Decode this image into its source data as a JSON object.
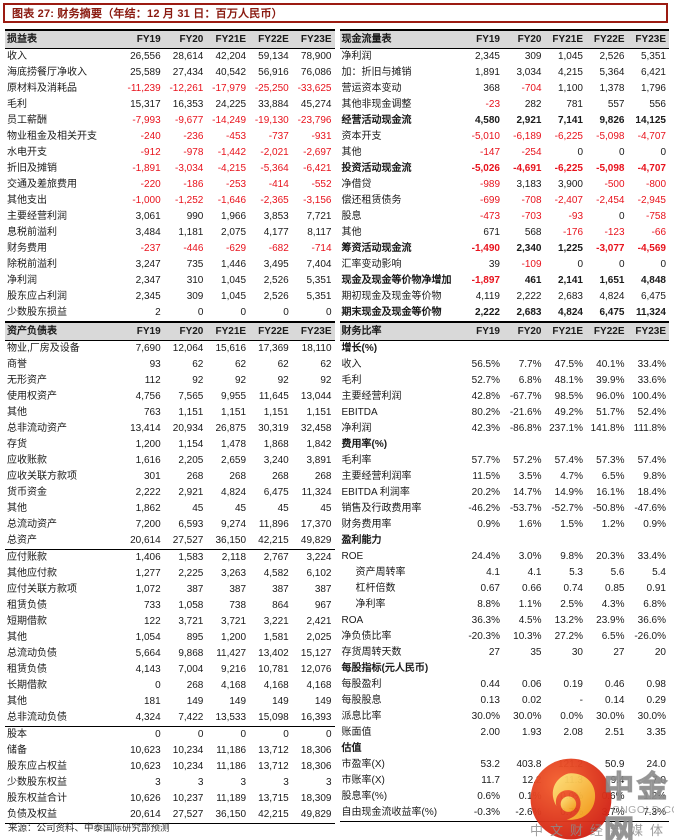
{
  "title": "图表 27: 财务摘要（年结：12 月 31 日：百万人民币）",
  "source": "来源：公司资料、中泰国际研究部预测",
  "columns": [
    "FY19",
    "FY20",
    "FY21E",
    "FY22E",
    "FY23E"
  ],
  "colors": {
    "accent_red_border": "#9b1b12",
    "title_text": "#8a1a10",
    "negative_value": "#e8131d",
    "header_bg": "#d9d9d9",
    "text": "#1a1a1a",
    "watermark_red": "#d6281e",
    "watermark_gold": "#f5a623",
    "watermark_gray": "#9a9a9a"
  },
  "tables": {
    "income": {
      "header": "损益表",
      "neg_red": true,
      "rows": [
        {
          "label": "收入",
          "values": [
            "26,556",
            "28,614",
            "42,204",
            "59,134",
            "78,900"
          ]
        },
        {
          "label": "海底捞餐厅净收入",
          "values": [
            "25,589",
            "27,434",
            "40,542",
            "56,916",
            "76,086"
          ]
        },
        {
          "label": "原材料及消耗品",
          "values": [
            "-11,239",
            "-12,261",
            "-17,979",
            "-25,250",
            "-33,625"
          ]
        },
        {
          "label": "毛利",
          "values": [
            "15,317",
            "16,353",
            "24,225",
            "33,884",
            "45,274"
          ]
        },
        {
          "label": "员工薪酬",
          "values": [
            "-7,993",
            "-9,677",
            "-14,249",
            "-19,130",
            "-23,796"
          ]
        },
        {
          "label": "物业租金及相关开支",
          "values": [
            "-240",
            "-236",
            "-453",
            "-737",
            "-931"
          ]
        },
        {
          "label": "水电开支",
          "values": [
            "-912",
            "-978",
            "-1,442",
            "-2,021",
            "-2,697"
          ]
        },
        {
          "label": "折旧及摊销",
          "values": [
            "-1,891",
            "-3,034",
            "-4,215",
            "-5,364",
            "-6,421"
          ]
        },
        {
          "label": "交通及差旅费用",
          "values": [
            "-220",
            "-186",
            "-253",
            "-414",
            "-552"
          ]
        },
        {
          "label": "其他支出",
          "values": [
            "-1,000",
            "-1,252",
            "-1,646",
            "-2,365",
            "-3,156"
          ]
        },
        {
          "label": "主要经营利润",
          "values": [
            "3,061",
            "990",
            "1,966",
            "3,853",
            "7,721"
          ]
        },
        {
          "label": "息税前溢利",
          "values": [
            "3,484",
            "1,181",
            "2,075",
            "4,177",
            "8,117"
          ]
        },
        {
          "label": "财务费用",
          "values": [
            "-237",
            "-446",
            "-629",
            "-682",
            "-714"
          ]
        },
        {
          "label": "除税前溢利",
          "values": [
            "3,247",
            "735",
            "1,446",
            "3,495",
            "7,404"
          ]
        },
        {
          "label": "净利润",
          "values": [
            "2,347",
            "310",
            "1,045",
            "2,526",
            "5,351"
          ]
        },
        {
          "label": "股东应占利润",
          "values": [
            "2,345",
            "309",
            "1,045",
            "2,526",
            "5,351"
          ]
        },
        {
          "label": "少数股东损益",
          "values": [
            "2",
            "0",
            "0",
            "0",
            "0"
          ]
        }
      ]
    },
    "cashflow": {
      "header": "现金流量表",
      "neg_red": true,
      "rows": [
        {
          "label": "净利润",
          "values": [
            "2,345",
            "309",
            "1,045",
            "2,526",
            "5,351"
          ]
        },
        {
          "label": "加：折旧与摊销",
          "values": [
            "1,891",
            "3,034",
            "4,215",
            "5,364",
            "6,421"
          ]
        },
        {
          "label": "营运资本变动",
          "values": [
            "368",
            "-704",
            "1,100",
            "1,378",
            "1,796"
          ]
        },
        {
          "label": "其他非现金调整",
          "values": [
            "-23",
            "282",
            "781",
            "557",
            "556"
          ]
        },
        {
          "label": "经营活动现金流",
          "bold": true,
          "values": [
            "4,580",
            "2,921",
            "7,141",
            "9,826",
            "14,125"
          ]
        },
        {
          "label": "资本开支",
          "values": [
            "-5,010",
            "-6,189",
            "-6,225",
            "-5,098",
            "-4,707"
          ]
        },
        {
          "label": "其他",
          "values": [
            "-147",
            "-254",
            "0",
            "0",
            "0"
          ]
        },
        {
          "label": "投资活动现金流",
          "bold": true,
          "values": [
            "-5,026",
            "-4,691",
            "-6,225",
            "-5,098",
            "-4,707"
          ]
        },
        {
          "label": "净借贷",
          "values": [
            "-989",
            "3,183",
            "3,900",
            "-500",
            "-800"
          ]
        },
        {
          "label": "偿还租赁债务",
          "values": [
            "-699",
            "-708",
            "-2,407",
            "-2,454",
            "-2,945"
          ]
        },
        {
          "label": "股息",
          "values": [
            "-473",
            "-703",
            "-93",
            "0",
            "-758"
          ]
        },
        {
          "label": "其他",
          "values": [
            "671",
            "568",
            "-176",
            "-123",
            "-66"
          ]
        },
        {
          "label": "筹资活动现金流",
          "bold": true,
          "values": [
            "-1,490",
            "2,340",
            "1,225",
            "-3,077",
            "-4,569"
          ]
        },
        {
          "label": "汇率变动影响",
          "values": [
            "39",
            "-109",
            "0",
            "0",
            "0"
          ]
        },
        {
          "label": "现金及现金等价物净增加",
          "bold": true,
          "values": [
            "-1,897",
            "461",
            "2,141",
            "1,651",
            "4,848"
          ]
        },
        {
          "label": "期初现金及现金等价物",
          "values": [
            "4,119",
            "2,222",
            "2,683",
            "4,824",
            "6,475"
          ]
        },
        {
          "label": "期末现金及现金等价物",
          "bold": true,
          "values": [
            "2,222",
            "2,683",
            "4,824",
            "6,475",
            "11,324"
          ]
        }
      ]
    },
    "balance": {
      "header": "资产负债表",
      "neg_red": true,
      "rows": [
        {
          "label": "物业,厂房及设备",
          "values": [
            "7,690",
            "12,064",
            "15,616",
            "17,369",
            "18,110"
          ]
        },
        {
          "label": "商誉",
          "values": [
            "93",
            "62",
            "62",
            "62",
            "62"
          ]
        },
        {
          "label": "无形资产",
          "values": [
            "112",
            "92",
            "92",
            "92",
            "92"
          ]
        },
        {
          "label": "使用权资产",
          "values": [
            "4,756",
            "7,565",
            "9,955",
            "11,645",
            "13,044"
          ]
        },
        {
          "label": "其他",
          "values": [
            "763",
            "1,151",
            "1,151",
            "1,151",
            "1,151"
          ]
        },
        {
          "label": "总非流动资产",
          "values": [
            "13,414",
            "20,934",
            "26,875",
            "30,319",
            "32,458"
          ]
        },
        {
          "label": "存货",
          "values": [
            "1,200",
            "1,154",
            "1,478",
            "1,868",
            "1,842"
          ]
        },
        {
          "label": "应收账款",
          "values": [
            "1,616",
            "2,205",
            "2,659",
            "3,240",
            "3,891"
          ]
        },
        {
          "label": "应收关联方款项",
          "values": [
            "301",
            "268",
            "268",
            "268",
            "268"
          ]
        },
        {
          "label": "货币资金",
          "values": [
            "2,222",
            "2,921",
            "4,824",
            "6,475",
            "11,324"
          ]
        },
        {
          "label": "其他",
          "values": [
            "1,862",
            "45",
            "45",
            "45",
            "45"
          ]
        },
        {
          "label": "总流动资产",
          "values": [
            "7,200",
            "6,593",
            "9,274",
            "11,896",
            "17,370"
          ]
        },
        {
          "label": "总资产",
          "line": 1,
          "values": [
            "20,614",
            "27,527",
            "36,150",
            "42,215",
            "49,829"
          ]
        },
        {
          "label": "应付账款",
          "values": [
            "1,406",
            "1,583",
            "2,118",
            "2,767",
            "3,224"
          ]
        },
        {
          "label": "其他应付款",
          "values": [
            "1,277",
            "2,225",
            "3,263",
            "4,582",
            "6,102"
          ]
        },
        {
          "label": "应付关联方款项",
          "values": [
            "1,072",
            "387",
            "387",
            "387",
            "387"
          ]
        },
        {
          "label": "租赁负债",
          "values": [
            "733",
            "1,058",
            "738",
            "864",
            "967"
          ]
        },
        {
          "label": "短期借款",
          "values": [
            "122",
            "3,721",
            "3,721",
            "3,221",
            "2,421"
          ]
        },
        {
          "label": "其他",
          "values": [
            "1,054",
            "895",
            "1,200",
            "1,581",
            "2,025"
          ]
        },
        {
          "label": "总流动负债",
          "values": [
            "5,664",
            "9,868",
            "11,427",
            "13,402",
            "15,127"
          ]
        },
        {
          "label": "租赁负债",
          "values": [
            "4,143",
            "7,004",
            "9,216",
            "10,781",
            "12,076"
          ]
        },
        {
          "label": "长期借款",
          "values": [
            "0",
            "268",
            "4,168",
            "4,168",
            "4,168"
          ]
        },
        {
          "label": "其他",
          "values": [
            "181",
            "149",
            "149",
            "149",
            "149"
          ]
        },
        {
          "label": "总非流动负债",
          "line": 1,
          "values": [
            "4,324",
            "7,422",
            "13,533",
            "15,098",
            "16,393"
          ]
        },
        {
          "label": "股本",
          "values": [
            "0",
            "0",
            "0",
            "0",
            "0"
          ]
        },
        {
          "label": "储备",
          "values": [
            "10,623",
            "10,234",
            "11,186",
            "13,712",
            "18,306"
          ]
        },
        {
          "label": "股东应占权益",
          "values": [
            "10,623",
            "10,234",
            "11,186",
            "13,712",
            "18,306"
          ]
        },
        {
          "label": "少数股东权益",
          "values": [
            "3",
            "3",
            "3",
            "3",
            "3"
          ]
        },
        {
          "label": "股东权益合计",
          "values": [
            "10,626",
            "10,237",
            "11,189",
            "13,715",
            "18,309"
          ]
        },
        {
          "label": "负债及权益",
          "line": 2,
          "values": [
            "20,614",
            "27,527",
            "36,150",
            "42,215",
            "49,829"
          ]
        }
      ]
    },
    "ratios": {
      "header": "财务比率",
      "neg_red": false,
      "rows": [
        {
          "label": "增长(%)",
          "bold": true,
          "values": [
            "",
            "",
            "",
            "",
            ""
          ]
        },
        {
          "label": "收入",
          "values": [
            "56.5%",
            "7.7%",
            "47.5%",
            "40.1%",
            "33.4%"
          ]
        },
        {
          "label": "毛利",
          "values": [
            "52.7%",
            "6.8%",
            "48.1%",
            "39.9%",
            "33.6%"
          ]
        },
        {
          "label": "主要经营利润",
          "values": [
            "42.8%",
            "-67.7%",
            "98.5%",
            "96.0%",
            "100.4%"
          ]
        },
        {
          "label": "EBITDA",
          "values": [
            "80.2%",
            "-21.6%",
            "49.2%",
            "51.7%",
            "52.4%"
          ]
        },
        {
          "label": "净利润",
          "values": [
            "42.3%",
            "-86.8%",
            "237.1%",
            "141.8%",
            "111.8%"
          ]
        },
        {
          "label": "费用率(%)",
          "bold": true,
          "values": [
            "",
            "",
            "",
            "",
            ""
          ]
        },
        {
          "label": "毛利率",
          "values": [
            "57.7%",
            "57.2%",
            "57.4%",
            "57.3%",
            "57.4%"
          ]
        },
        {
          "label": "主要经营利润率",
          "values": [
            "11.5%",
            "3.5%",
            "4.7%",
            "6.5%",
            "9.8%"
          ]
        },
        {
          "label": "EBITDA 利润率",
          "values": [
            "20.2%",
            "14.7%",
            "14.9%",
            "16.1%",
            "18.4%"
          ]
        },
        {
          "label": "销售及行政费用率",
          "values": [
            "-46.2%",
            "-53.7%",
            "-52.7%",
            "-50.8%",
            "-47.6%"
          ]
        },
        {
          "label": "财务费用率",
          "values": [
            "0.9%",
            "1.6%",
            "1.5%",
            "1.2%",
            "0.9%"
          ]
        },
        {
          "label": "盈利能力",
          "bold": true,
          "values": [
            "",
            "",
            "",
            "",
            ""
          ]
        },
        {
          "label": "ROE",
          "values": [
            "24.4%",
            "3.0%",
            "9.8%",
            "20.3%",
            "33.4%"
          ]
        },
        {
          "label": "资产周转率",
          "indent": true,
          "values": [
            "4.1",
            "4.1",
            "5.3",
            "5.6",
            "5.4"
          ]
        },
        {
          "label": "杠杆倍数",
          "indent": true,
          "values": [
            "0.67",
            "0.66",
            "0.74",
            "0.85",
            "0.91"
          ]
        },
        {
          "label": "净利率",
          "indent": true,
          "values": [
            "8.8%",
            "1.1%",
            "2.5%",
            "4.3%",
            "6.8%"
          ]
        },
        {
          "label": "ROA",
          "values": [
            "36.3%",
            "4.5%",
            "13.2%",
            "23.9%",
            "36.6%"
          ]
        },
        {
          "label": "净负债比率",
          "values": [
            "-20.3%",
            "10.3%",
            "27.2%",
            "6.5%",
            "-26.0%"
          ]
        },
        {
          "label": "存货周转天数",
          "values": [
            "27",
            "35",
            "30",
            "27",
            "20"
          ]
        },
        {
          "label": "每股指标(元人民币)",
          "bold": true,
          "values": [
            "",
            "",
            "",
            "",
            ""
          ]
        },
        {
          "label": "每股盈利",
          "values": [
            "0.44",
            "0.06",
            "0.19",
            "0.46",
            "0.98"
          ]
        },
        {
          "label": "每股股息",
          "values": [
            "0.13",
            "0.02",
            "-",
            "0.14",
            "0.29"
          ]
        },
        {
          "label": "派息比率",
          "values": [
            "30.0%",
            "30.0%",
            "0.0%",
            "30.0%",
            "30.0%"
          ]
        },
        {
          "label": "账面值",
          "values": [
            "2.00",
            "1.93",
            "2.08",
            "2.51",
            "3.35"
          ]
        },
        {
          "label": "估值",
          "bold": true,
          "values": [
            "",
            "",
            "",
            "",
            ""
          ]
        },
        {
          "label": "市盈率(X)",
          "values": [
            "53.2",
            "403.8",
            "121.2",
            "50.9",
            "24.0"
          ]
        },
        {
          "label": "市账率(X)",
          "values": [
            "11.7",
            "12.2",
            "11.3",
            "9.4",
            "7.0"
          ]
        },
        {
          "label": "股息率(%)",
          "values": [
            "0.6%",
            "0.1%",
            "0.0%",
            "0.6%",
            "1.2%"
          ]
        },
        {
          "label": "自由现金流收益率(%)",
          "line": 2,
          "values": [
            "-0.3%",
            "-2.6%",
            "0.7%",
            "3.7%",
            "7.3%"
          ]
        }
      ]
    }
  },
  "watermark": {
    "logo_icon": "cngold-red-gold-swirl-logo",
    "brand": "中金网",
    "domain": "CNGOLD.COM.CN",
    "tagline": "中文财经新媒体"
  }
}
